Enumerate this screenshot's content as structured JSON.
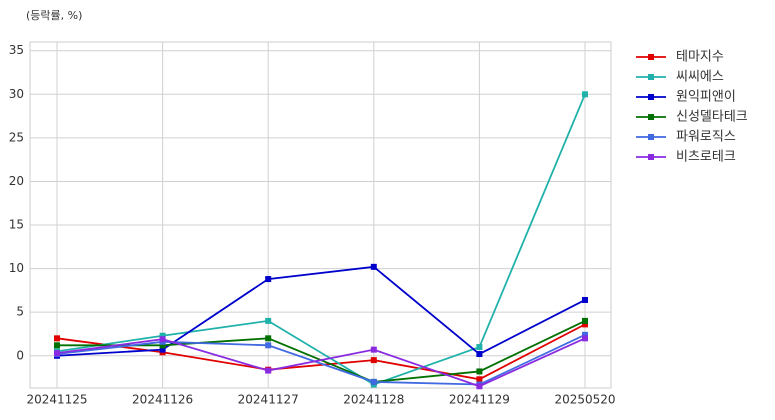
{
  "chart_data": {
    "type": "line",
    "y_label": "(등락률, %)",
    "categories": [
      "20241125",
      "20241126",
      "20241127",
      "20241128",
      "20241129",
      "20250520"
    ],
    "series": [
      {
        "name": "테마지수",
        "color": "#e00000",
        "values": [
          2.0,
          0.4,
          -1.6,
          -0.5,
          -2.7,
          3.6
        ]
      },
      {
        "name": "씨씨에스",
        "color": "#20b2aa",
        "values": [
          0.5,
          2.3,
          4.0,
          -3.3,
          1.0,
          30.0
        ]
      },
      {
        "name": "원익피앤이",
        "color": "#0000cd",
        "values": [
          0.0,
          0.7,
          8.8,
          10.2,
          0.2,
          6.4
        ]
      },
      {
        "name": "신성델타테크",
        "color": "#007000",
        "values": [
          1.2,
          1.2,
          2.0,
          -3.0,
          -1.8,
          4.0
        ]
      },
      {
        "name": "파워로직스",
        "color": "#4169e1",
        "values": [
          0.2,
          1.6,
          1.2,
          -3.0,
          -3.3,
          2.4
        ]
      },
      {
        "name": "비츠로테크",
        "color": "#8a2be2",
        "values": [
          0.3,
          1.9,
          -1.7,
          0.7,
          -3.5,
          2.0
        ]
      }
    ],
    "ylim": [
      -3.7,
      36
    ],
    "yticks": [
      0,
      5,
      10,
      15,
      20,
      25,
      30,
      35
    ],
    "grid": true,
    "legend": "outside-right"
  }
}
